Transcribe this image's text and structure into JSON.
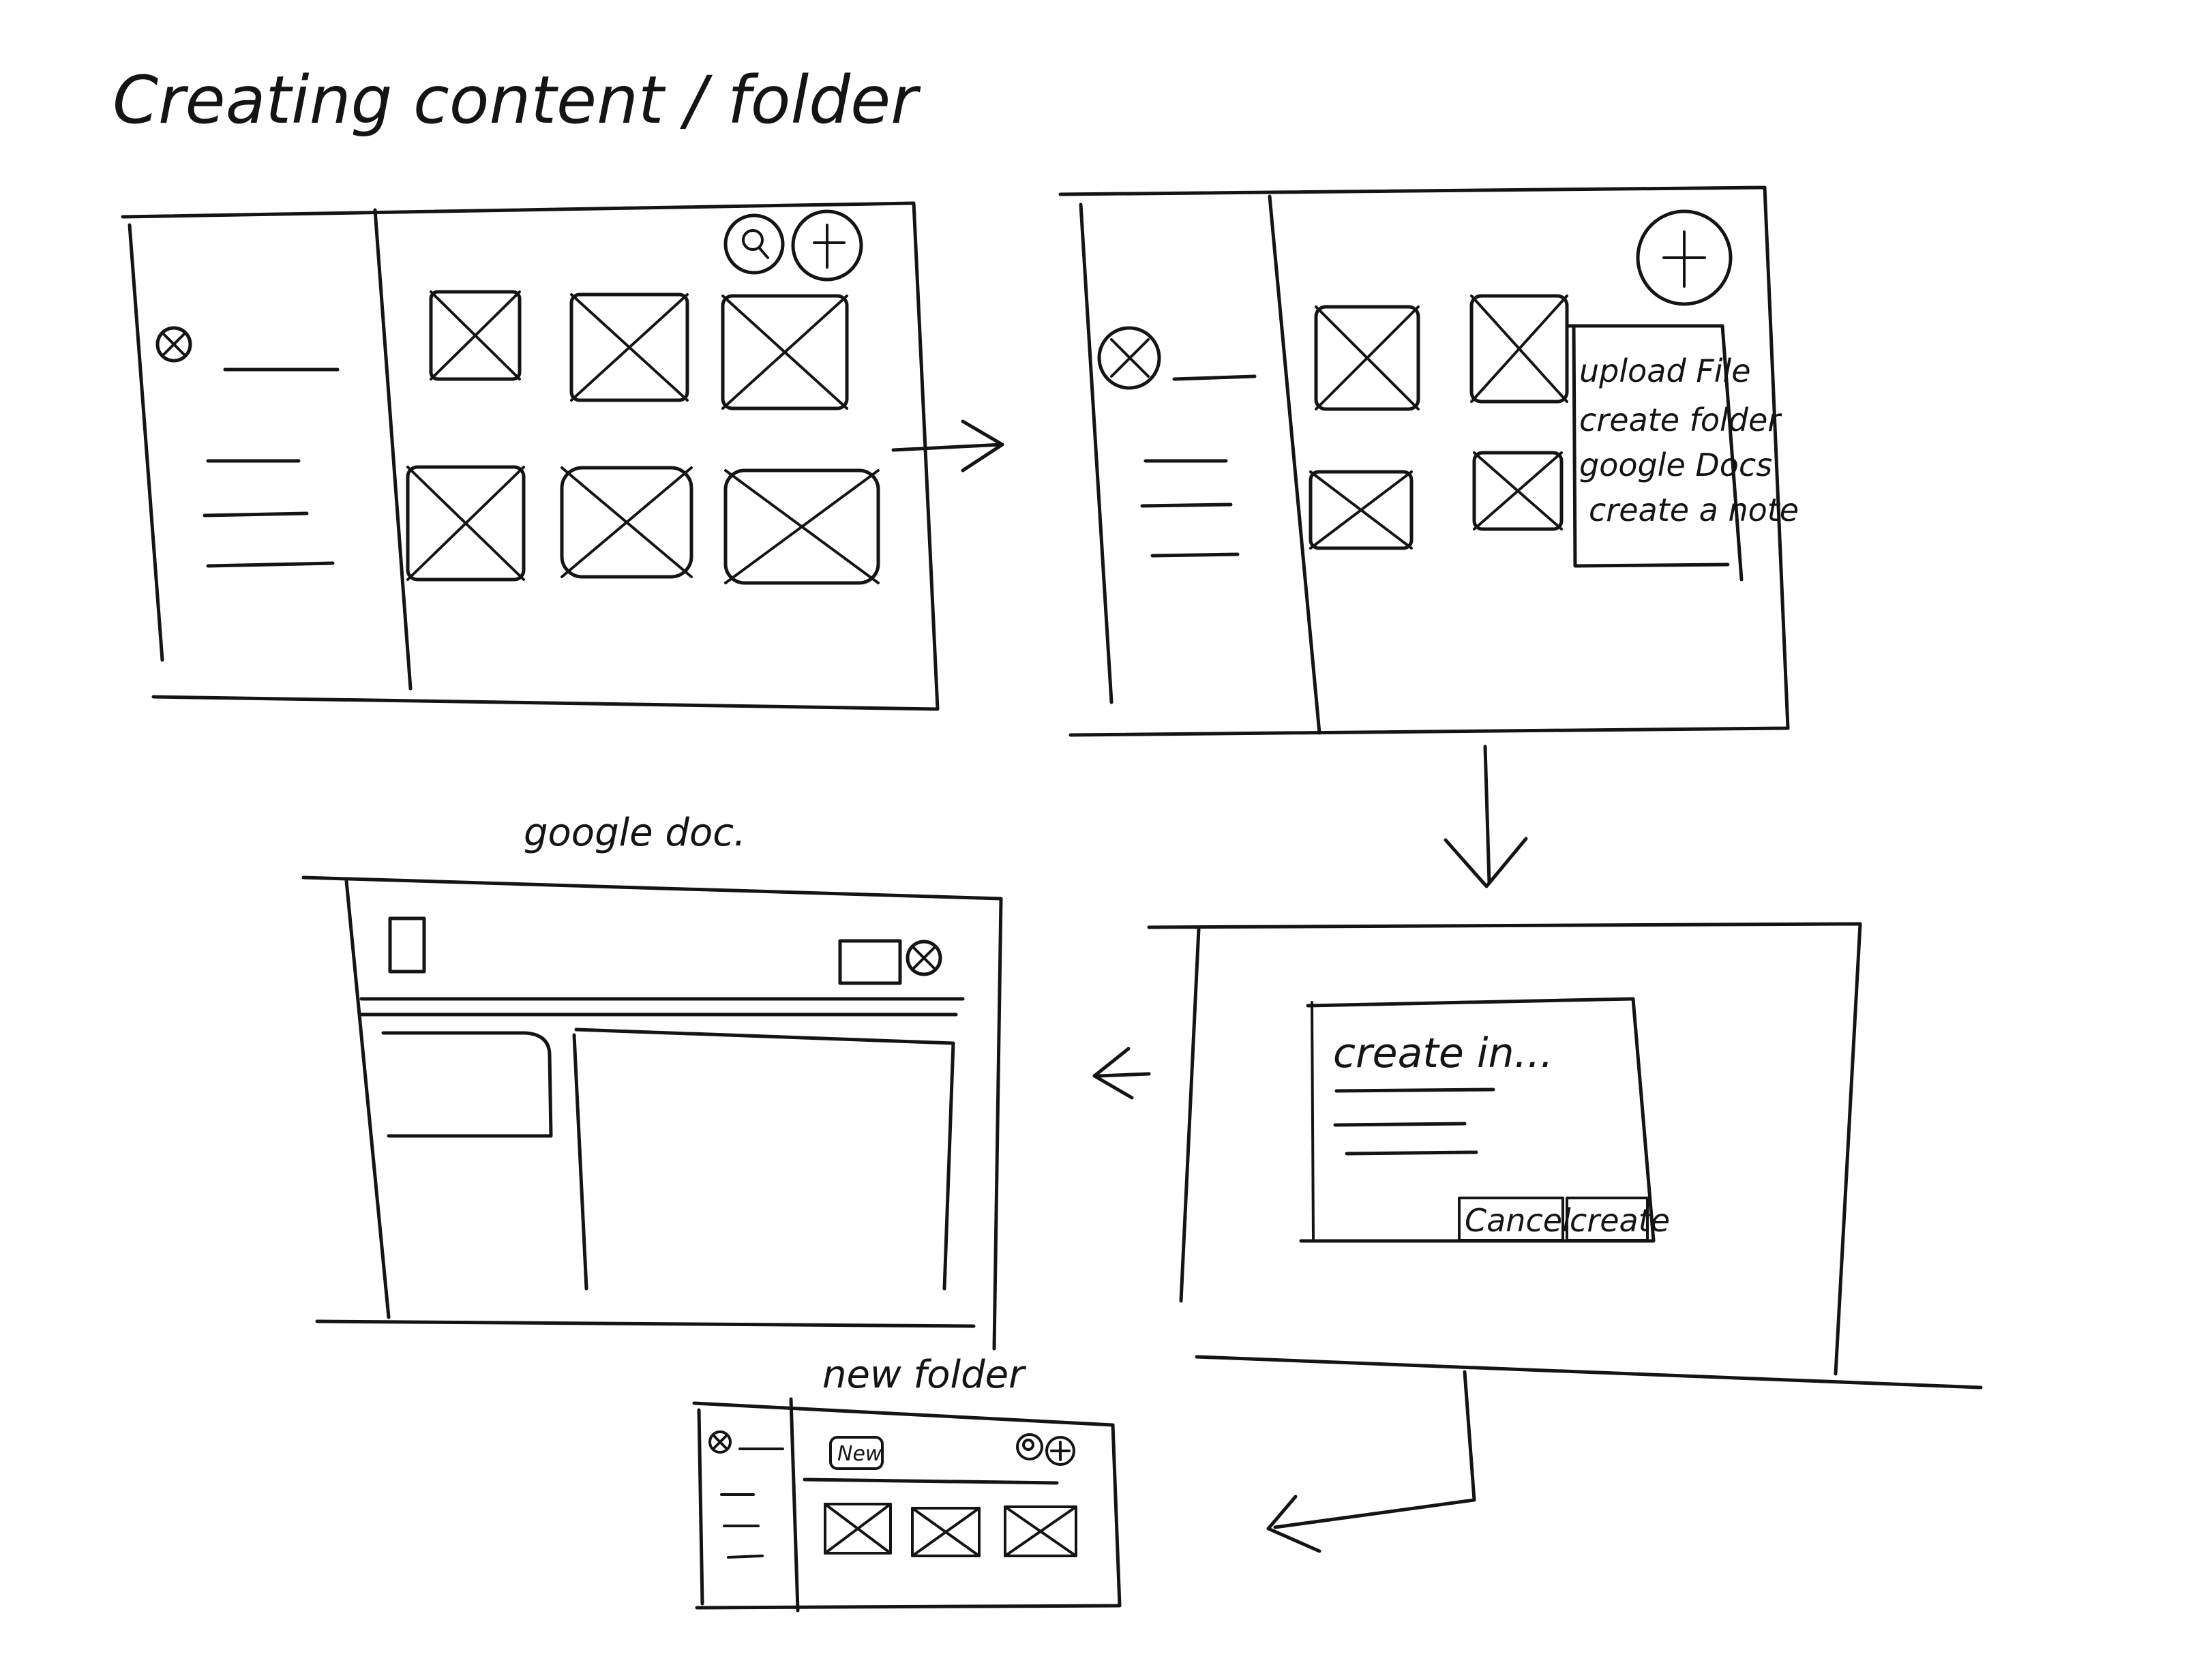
{
  "title": "Creating content / folder",
  "frames": {
    "content_menu": {
      "menu_items": [
        "upload File",
        "create folder",
        "google Docs",
        "create a note"
      ]
    },
    "create_dialog": {
      "heading": "create in...",
      "cancel_label": "Cancel",
      "create_label": "create"
    },
    "google_doc": {
      "label": "google doc."
    },
    "new_folder": {
      "label": "new folder",
      "tag_label": "New"
    }
  }
}
